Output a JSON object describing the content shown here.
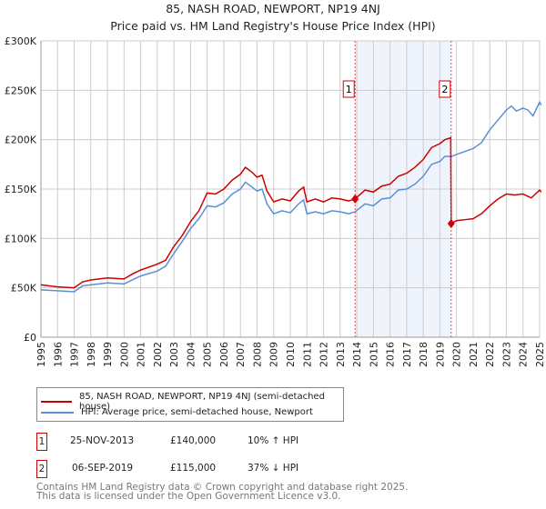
{
  "chart_data": {
    "type": "line",
    "title": "85, NASH ROAD, NEWPORT, NP19 4NJ",
    "subtitle": "Price paid vs. HM Land Registry's House Price Index (HPI)",
    "xlim": [
      1995,
      2025.1
    ],
    "ylim": [
      0,
      300000
    ],
    "yticks": [
      0,
      50000,
      100000,
      150000,
      200000,
      250000,
      300000
    ],
    "ytick_labels": [
      "£0",
      "£50K",
      "£100K",
      "£150K",
      "£200K",
      "£250K",
      "£300K"
    ],
    "xticks": [
      "1995",
      "1996",
      "1997",
      "1998",
      "1999",
      "2000",
      "2001",
      "2002",
      "2003",
      "2004",
      "2005",
      "2006",
      "2007",
      "2008",
      "2009",
      "2010",
      "2011",
      "2012",
      "2013",
      "2014",
      "2015",
      "2016",
      "2017",
      "2018",
      "2019",
      "2020",
      "2021",
      "2022",
      "2023",
      "2024",
      "2025"
    ],
    "grid": true,
    "shaded_region": [
      2013.9,
      2019.68
    ],
    "series": [
      {
        "name": "85, NASH ROAD, NEWPORT, NP19 4NJ (semi-detached house)",
        "color": "#cc0000",
        "x": [
          1995,
          1996,
          1997,
          1997.5,
          1998,
          1999,
          2000,
          2000.5,
          2001,
          2002,
          2002.5,
          2003,
          2003.5,
          2004,
          2004.5,
          2005,
          2005.5,
          2006,
          2006.5,
          2007,
          2007.3,
          2007.7,
          2008,
          2008.3,
          2008.6,
          2009,
          2009.5,
          2010,
          2010.5,
          2010.8,
          2011,
          2011.5,
          2012,
          2012.5,
          2013,
          2013.5,
          2013.9,
          2014.5,
          2015,
          2015.5,
          2016,
          2016.5,
          2017,
          2017.5,
          2018,
          2018.5,
          2019,
          2019.3,
          2019.65,
          2019.68,
          2020,
          2020.5,
          2021,
          2021.5,
          2022,
          2022.5,
          2023,
          2023.5,
          2024,
          2024.5,
          2025,
          2025.1
        ],
        "y": [
          53000,
          51000,
          50000,
          56000,
          58000,
          60000,
          59000,
          64000,
          68000,
          74000,
          78000,
          92000,
          103000,
          117000,
          128000,
          146000,
          145000,
          150000,
          159000,
          165000,
          172000,
          167000,
          162000,
          164000,
          148000,
          137000,
          140000,
          138000,
          148000,
          152000,
          137000,
          140000,
          137000,
          141000,
          140000,
          138000,
          140000,
          149000,
          147000,
          153000,
          155000,
          163000,
          166000,
          172000,
          180000,
          192000,
          196000,
          200000,
          202000,
          115000,
          118000,
          119000,
          120000,
          125000,
          133000,
          140000,
          145000,
          144000,
          145000,
          141000,
          149000,
          147000
        ]
      },
      {
        "name": "HPI: Average price, semi-detached house, Newport",
        "color": "#5b8fd6",
        "x": [
          1995,
          1996,
          1997,
          1997.5,
          1998,
          1999,
          2000,
          2000.5,
          2001,
          2002,
          2002.5,
          2003,
          2003.5,
          2004,
          2004.5,
          2005,
          2005.5,
          2006,
          2006.5,
          2007,
          2007.3,
          2007.7,
          2008,
          2008.3,
          2008.6,
          2009,
          2009.5,
          2010,
          2010.5,
          2010.8,
          2011,
          2011.5,
          2012,
          2012.5,
          2013,
          2013.5,
          2013.9,
          2014.5,
          2015,
          2015.5,
          2016,
          2016.5,
          2017,
          2017.5,
          2018,
          2018.5,
          2019,
          2019.3,
          2019.7,
          2020,
          2020.5,
          2021,
          2021.5,
          2022,
          2022.5,
          2023,
          2023.3,
          2023.6,
          2024,
          2024.3,
          2024.6,
          2025,
          2025.1
        ],
        "y": [
          48000,
          47000,
          46000,
          52000,
          53000,
          55000,
          54000,
          58000,
          62000,
          67000,
          72000,
          85000,
          97000,
          110000,
          120000,
          133000,
          132000,
          136000,
          145000,
          150000,
          157000,
          152000,
          148000,
          150000,
          135000,
          125000,
          128000,
          126000,
          135000,
          139000,
          125000,
          127000,
          125000,
          128000,
          127000,
          125000,
          127000,
          135000,
          133000,
          140000,
          141000,
          149000,
          150000,
          155000,
          163000,
          175000,
          178000,
          183000,
          183000,
          185000,
          188000,
          191000,
          197000,
          210000,
          220000,
          230000,
          234000,
          229000,
          232000,
          230000,
          224000,
          238000,
          235000
        ]
      }
    ],
    "sales": [
      {
        "label": "1",
        "x": 2013.9,
        "price": 140000,
        "date": "25-NOV-2013",
        "price_text": "£140,000",
        "hpi": "10% ↑ HPI"
      },
      {
        "label": "2",
        "x": 2019.68,
        "price": 115000,
        "date": "06-SEP-2019",
        "price_text": "£115,000",
        "hpi": "37% ↓ HPI"
      }
    ]
  },
  "footer": {
    "line1": "Contains HM Land Registry data © Crown copyright and database right 2025.",
    "line2": "This data is licensed under the Open Government Licence v3.0."
  }
}
